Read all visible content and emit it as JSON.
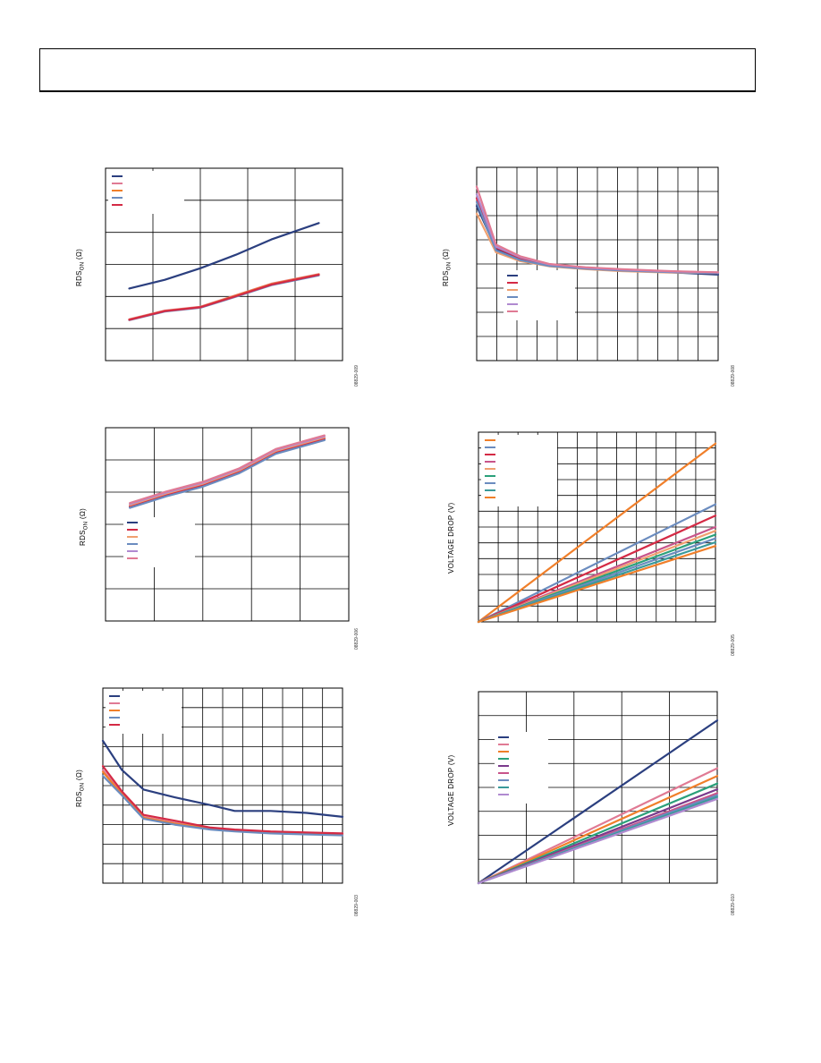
{
  "header": {
    "text": ""
  },
  "colors": {
    "navy": "#2b3f7f",
    "pink": "#e07a94",
    "orange": "#f07f2a",
    "steel": "#6b8cbf",
    "red": "#d42a45",
    "green": "#2ba07a",
    "purple": "#7a3a8c",
    "magenta": "#c8548a",
    "teal": "#3a9a9a",
    "peach": "#f0a070",
    "lavender": "#b08ad0",
    "grid": "#000000"
  },
  "chart_data": [
    {
      "id": "top-left",
      "type": "line",
      "ylabel_main": "RDS",
      "ylabel_sub": "ON",
      "ylabel_unit": "(Ω)",
      "fig_id": "08829-009",
      "xlim": [
        0,
        100
      ],
      "ylim": [
        0,
        100
      ],
      "legend_position": "top-left",
      "series": [
        {
          "color": "navy",
          "x": [
            10,
            25,
            40,
            55,
            70,
            90
          ],
          "y": [
            37.5,
            42,
            48,
            55,
            63,
            71.5
          ]
        },
        {
          "color": "pink",
          "x": [
            10,
            25,
            40,
            55,
            70,
            90
          ],
          "y": [
            21.5,
            26,
            28,
            34,
            40,
            45
          ]
        },
        {
          "color": "orange",
          "x": [
            10,
            25,
            40,
            55,
            70,
            90
          ],
          "y": [
            21.3,
            25.8,
            27.8,
            33.8,
            39.8,
            44.8
          ]
        },
        {
          "color": "steel",
          "x": [
            10,
            25,
            40,
            55,
            70,
            90
          ],
          "y": [
            21,
            25.5,
            27.5,
            33.2,
            39.2,
            44.3
          ]
        },
        {
          "color": "red",
          "x": [
            10,
            25,
            40,
            55,
            70,
            90
          ],
          "y": [
            21.2,
            25.7,
            27.7,
            33.5,
            39.5,
            44.6
          ]
        }
      ]
    },
    {
      "id": "top-right",
      "type": "line",
      "ylabel_main": "RDS",
      "ylabel_sub": "ON",
      "ylabel_unit": "(Ω)",
      "fig_id": "08829-008",
      "xlim": [
        0,
        100
      ],
      "ylim": [
        0,
        100
      ],
      "legend_position": "center-left",
      "series": [
        {
          "color": "navy",
          "x": [
            0,
            8,
            18,
            30,
            45,
            60,
            80,
            100
          ],
          "y": [
            80,
            58,
            52,
            49,
            47.5,
            46.5,
            45.7,
            44.5
          ]
        },
        {
          "color": "red",
          "x": [
            0,
            8,
            18,
            30,
            45,
            60,
            80,
            100
          ],
          "y": [
            84,
            58.5,
            53,
            49.5,
            48,
            47,
            46,
            45.5
          ]
        },
        {
          "color": "peach",
          "x": [
            0,
            8,
            18,
            30,
            45,
            60,
            80,
            100
          ],
          "y": [
            76,
            56,
            51.5,
            48.8,
            47.3,
            46.3,
            45.5,
            45.3
          ]
        },
        {
          "color": "steel",
          "x": [
            0,
            8,
            18,
            30,
            45,
            60,
            80,
            100
          ],
          "y": [
            82,
            57,
            52,
            49,
            47.6,
            46.6,
            45.8,
            45.3
          ]
        },
        {
          "color": "lavender",
          "x": [
            0,
            8,
            18,
            30,
            45,
            60,
            80,
            100
          ],
          "y": [
            86,
            59,
            53.5,
            49.8,
            48.1,
            47.1,
            46.1,
            45.6
          ]
        },
        {
          "color": "pink",
          "x": [
            0,
            8,
            18,
            30,
            45,
            60,
            80,
            100
          ],
          "y": [
            90,
            60,
            54,
            50,
            48.3,
            47.3,
            46.3,
            45.7
          ]
        }
      ]
    },
    {
      "id": "middle-left",
      "type": "line",
      "ylabel_main": "RDS",
      "ylabel_sub": "ON",
      "ylabel_unit": "(Ω)",
      "fig_id": "08829-006",
      "xlim": [
        0,
        100
      ],
      "ylim": [
        0,
        100
      ],
      "legend_position": "center-left",
      "series": [
        {
          "color": "navy",
          "x": [
            10,
            25,
            40,
            55,
            70,
            90
          ],
          "y": [
            59,
            65,
            70,
            77,
            87,
            94
          ]
        },
        {
          "color": "red",
          "x": [
            10,
            25,
            40,
            55,
            70,
            90
          ],
          "y": [
            59.5,
            65.5,
            70.5,
            77.5,
            87.5,
            94.5
          ]
        },
        {
          "color": "peach",
          "x": [
            10,
            25,
            40,
            55,
            70,
            90
          ],
          "y": [
            60,
            66,
            71,
            78,
            88,
            95
          ]
        },
        {
          "color": "steel",
          "x": [
            10,
            25,
            40,
            55,
            70,
            90
          ],
          "y": [
            58.5,
            64.5,
            69.5,
            76.5,
            86.5,
            93.5
          ]
        },
        {
          "color": "lavender",
          "x": [
            10,
            25,
            40,
            55,
            70,
            90
          ],
          "y": [
            60.5,
            66.5,
            71.5,
            78.5,
            88.5,
            95.5
          ]
        },
        {
          "color": "pink",
          "x": [
            10,
            25,
            40,
            55,
            70,
            90
          ],
          "y": [
            61,
            67,
            72,
            79,
            89,
            96
          ]
        }
      ]
    },
    {
      "id": "middle-right",
      "type": "line",
      "ylabel_main": "VOLTAGE DROP (V)",
      "ylabel_sub": "",
      "ylabel_unit": "",
      "fig_id": "08829-005",
      "xlim": [
        0,
        100
      ],
      "ylim": [
        0,
        100
      ],
      "legend_position": "top-left",
      "series": [
        {
          "color": "orange",
          "x": [
            0,
            100
          ],
          "y": [
            0,
            94
          ]
        },
        {
          "color": "steel",
          "x": [
            0,
            100
          ],
          "y": [
            0,
            62
          ]
        },
        {
          "color": "red",
          "x": [
            0,
            100
          ],
          "y": [
            0,
            56
          ]
        },
        {
          "color": "magenta",
          "x": [
            0,
            100
          ],
          "y": [
            0,
            50
          ]
        },
        {
          "color": "peach",
          "x": [
            0,
            100
          ],
          "y": [
            0,
            48
          ]
        },
        {
          "color": "green",
          "x": [
            0,
            100
          ],
          "y": [
            0,
            46
          ]
        },
        {
          "color": "steel",
          "x": [
            0,
            100
          ],
          "y": [
            0,
            44
          ]
        },
        {
          "color": "teal",
          "x": [
            0,
            100
          ],
          "y": [
            0,
            42
          ]
        },
        {
          "color": "orange",
          "x": [
            0,
            100
          ],
          "y": [
            0,
            40
          ]
        }
      ]
    },
    {
      "id": "bottom-left",
      "type": "line",
      "ylabel_main": "RDS",
      "ylabel_sub": "ON",
      "ylabel_unit": "(Ω)",
      "fig_id": "08829-003",
      "xlim": [
        0,
        100
      ],
      "ylim": [
        0,
        100
      ],
      "legend_position": "top-left",
      "series": [
        {
          "color": "navy",
          "x": [
            0,
            8,
            17,
            30,
            45,
            55,
            70,
            85,
            100
          ],
          "y": [
            73,
            58,
            48,
            44,
            40,
            37,
            37,
            36,
            34
          ]
        },
        {
          "color": "pink",
          "x": [
            0,
            8,
            17,
            30,
            45,
            55,
            70,
            85,
            100
          ],
          "y": [
            58,
            46,
            34,
            31,
            28,
            27,
            26,
            25.5,
            25
          ]
        },
        {
          "color": "orange",
          "x": [
            0,
            8,
            17,
            30,
            45,
            55,
            70,
            85,
            100
          ],
          "y": [
            57,
            45.5,
            33.5,
            30.5,
            27.8,
            26.8,
            25.8,
            25.3,
            24.8
          ]
        },
        {
          "color": "steel",
          "x": [
            0,
            8,
            17,
            30,
            45,
            55,
            70,
            85,
            100
          ],
          "y": [
            55,
            45,
            33,
            30,
            27.5,
            26.5,
            25.5,
            25,
            24.5
          ]
        },
        {
          "color": "red",
          "x": [
            0,
            8,
            17,
            30,
            45,
            55,
            70,
            85,
            100
          ],
          "y": [
            60,
            47,
            35,
            32,
            28.5,
            27.5,
            26.5,
            26,
            25.5
          ]
        }
      ]
    },
    {
      "id": "bottom-right",
      "type": "line",
      "ylabel_main": "VOLTAGE DROP (V)",
      "ylabel_sub": "",
      "ylabel_unit": "",
      "fig_id": "08829-010",
      "xlim": [
        0,
        100
      ],
      "ylim": [
        0,
        100
      ],
      "legend_position": "center-left",
      "series": [
        {
          "color": "navy",
          "x": [
            0,
            100
          ],
          "y": [
            0,
            85
          ]
        },
        {
          "color": "pink",
          "x": [
            0,
            100
          ],
          "y": [
            0,
            60
          ]
        },
        {
          "color": "orange",
          "x": [
            0,
            100
          ],
          "y": [
            0,
            56
          ]
        },
        {
          "color": "green",
          "x": [
            0,
            100
          ],
          "y": [
            0,
            52
          ]
        },
        {
          "color": "purple",
          "x": [
            0,
            100
          ],
          "y": [
            0,
            49
          ]
        },
        {
          "color": "magenta",
          "x": [
            0,
            100
          ],
          "y": [
            0,
            47
          ]
        },
        {
          "color": "steel",
          "x": [
            0,
            100
          ],
          "y": [
            0,
            46
          ]
        },
        {
          "color": "teal",
          "x": [
            0,
            100
          ],
          "y": [
            0,
            45
          ]
        },
        {
          "color": "lavender",
          "x": [
            0,
            100
          ],
          "y": [
            0,
            44
          ]
        }
      ]
    }
  ]
}
